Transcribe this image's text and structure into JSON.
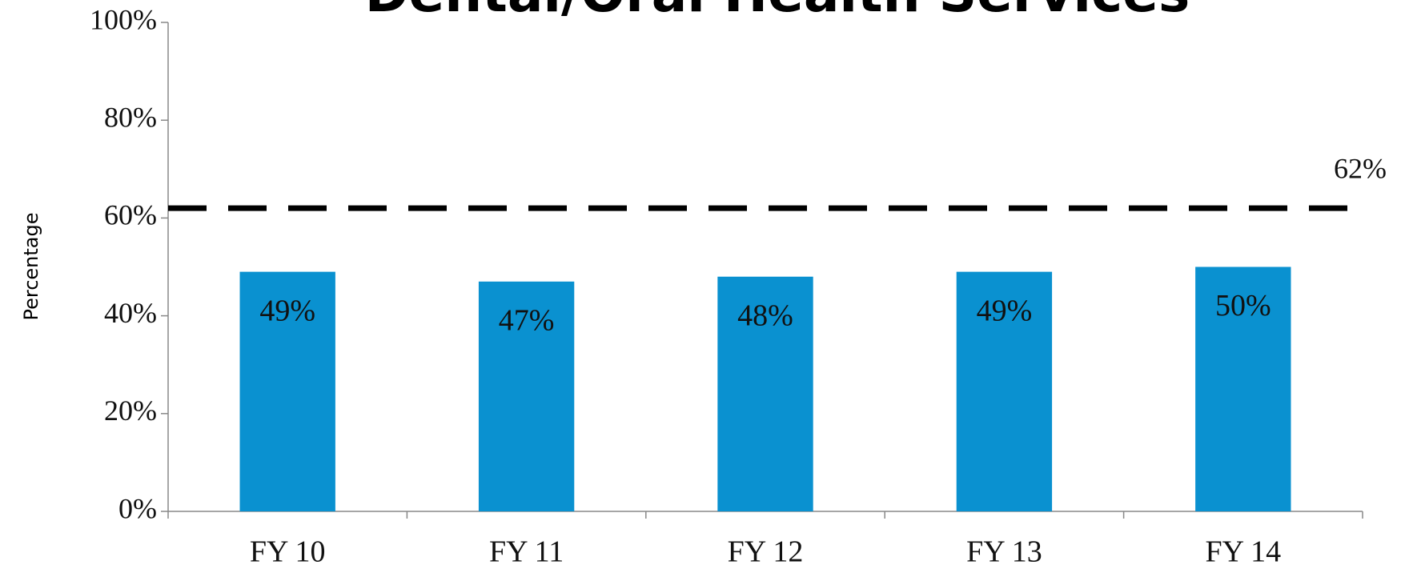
{
  "chart_data": {
    "type": "bar",
    "title": "Dental/Oral Health Services",
    "y_label": "Percentage",
    "categories": [
      "FY 10",
      "FY 11",
      "FY 12",
      "FY 13",
      "FY 14"
    ],
    "values": [
      49,
      47,
      48,
      49,
      50
    ],
    "value_labels": [
      "49%",
      "47%",
      "48%",
      "49%",
      "50%"
    ],
    "color": "#0a91d0",
    "ylim": [
      0,
      100
    ],
    "yticks": [
      {
        "value": 0,
        "label": "0%"
      },
      {
        "value": 20,
        "label": "20%"
      },
      {
        "value": 40,
        "label": "40%"
      },
      {
        "value": 60,
        "label": "60%"
      },
      {
        "value": 80,
        "label": "80%"
      },
      {
        "value": 100,
        "label": "100%"
      }
    ],
    "reference_line": {
      "value": 62,
      "label": "62%",
      "color": "#000000"
    }
  }
}
